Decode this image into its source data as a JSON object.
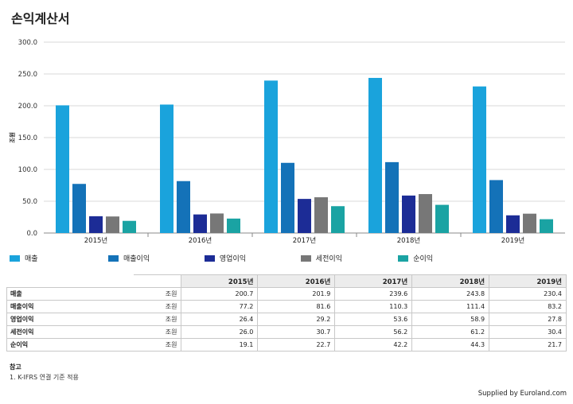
{
  "title": "손익계산서",
  "chart_data": {
    "type": "bar",
    "categories": [
      "2015년",
      "2016년",
      "2017년",
      "2018년",
      "2019년"
    ],
    "ylabel": "조원",
    "ylim": [
      0,
      300
    ],
    "yticks": [
      "0.0",
      "50.0",
      "100.0",
      "150.0",
      "200.0",
      "250.0",
      "300.0"
    ],
    "grid": true,
    "legend_position": "bottom",
    "series": [
      {
        "name": "매출",
        "color": "#1aa3dc",
        "values": [
          200.7,
          201.9,
          239.6,
          243.8,
          230.4
        ]
      },
      {
        "name": "매출이익",
        "color": "#1472b8",
        "values": [
          77.2,
          81.6,
          110.3,
          111.4,
          83.2
        ]
      },
      {
        "name": "영업이익",
        "color": "#1c2c96",
        "values": [
          26.4,
          29.2,
          53.6,
          58.9,
          27.8
        ]
      },
      {
        "name": "세전이익",
        "color": "#777777",
        "values": [
          26.0,
          30.7,
          56.2,
          61.2,
          30.4
        ]
      },
      {
        "name": "순이익",
        "color": "#1aa3a3",
        "values": [
          19.1,
          22.7,
          42.2,
          44.3,
          21.7
        ]
      }
    ]
  },
  "table": {
    "headers": [
      "2015년",
      "2016년",
      "2017년",
      "2018년",
      "2019년"
    ],
    "rows": [
      {
        "label": "매출",
        "unit": "조원",
        "values": [
          "200.7",
          "201.9",
          "239.6",
          "243.8",
          "230.4"
        ]
      },
      {
        "label": "매출이익",
        "unit": "조원",
        "values": [
          "77.2",
          "81.6",
          "110.3",
          "111.4",
          "83.2"
        ]
      },
      {
        "label": "영업이익",
        "unit": "조원",
        "values": [
          "26.4",
          "29.2",
          "53.6",
          "58.9",
          "27.8"
        ]
      },
      {
        "label": "세전이익",
        "unit": "조원",
        "values": [
          "26.0",
          "30.7",
          "56.2",
          "61.2",
          "30.4"
        ]
      },
      {
        "label": "순이익",
        "unit": "조원",
        "values": [
          "19.1",
          "22.7",
          "42.2",
          "44.3",
          "21.7"
        ]
      }
    ]
  },
  "notes": {
    "title": "참고",
    "items": [
      "1. K-IFRS 연결 기준 적용"
    ]
  },
  "credit": "Supplied by Euroland.com"
}
